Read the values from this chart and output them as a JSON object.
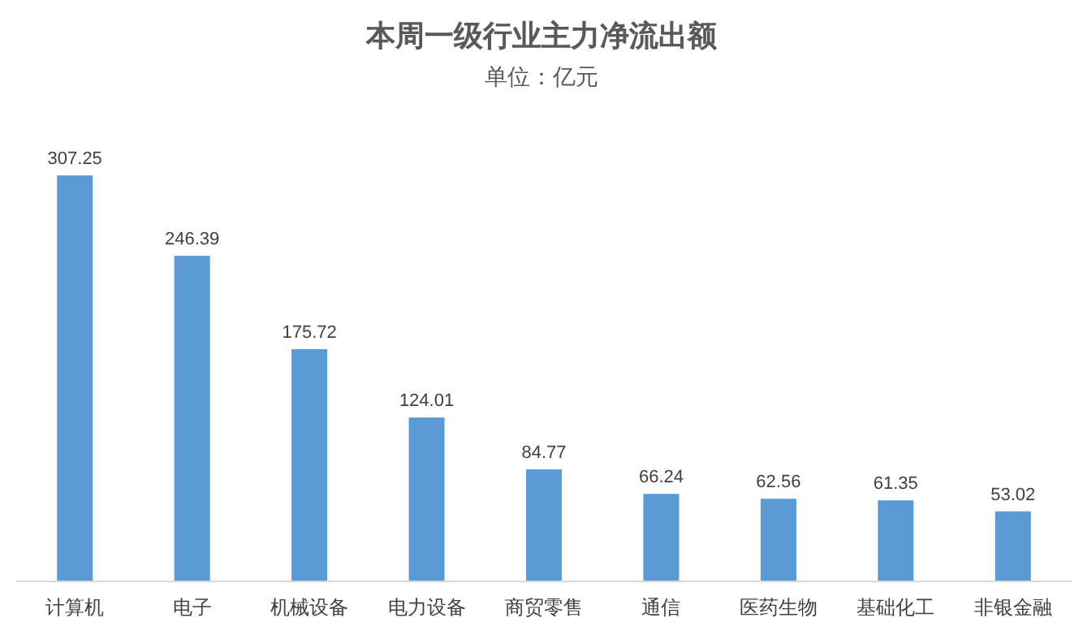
{
  "chart_data": {
    "type": "bar",
    "title": "本周一级行业主力净流出额",
    "subtitle": "单位：亿元",
    "categories": [
      "计算机",
      "电子",
      "机械设备",
      "电力设备",
      "商贸零售",
      "通信",
      "医药生物",
      "基础化工",
      "非银金融"
    ],
    "values": [
      307.25,
      246.39,
      175.72,
      124.01,
      84.77,
      66.24,
      62.56,
      61.35,
      53.02
    ],
    "color": "#5b9bd5",
    "data_labels": true
  }
}
